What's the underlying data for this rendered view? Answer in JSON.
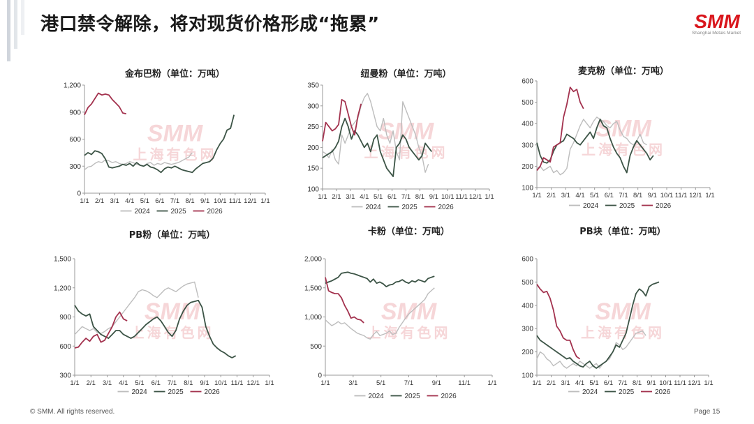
{
  "page": {
    "title": "港口禁令解除，将对现货价格形成“拖累”",
    "logo_text": "SMM",
    "logo_subtitle": "Shanghai Metals Market",
    "watermark_latin": "SMM",
    "watermark_cn": "上海有色网",
    "footer_copyright": "© SMM. All rights reserved.",
    "footer_page": "Page 15"
  },
  "colors": {
    "y2024": "#bdbdbd",
    "y2025": "#3c5446",
    "y2026": "#a3324e",
    "brand": "#d9161c"
  },
  "chart_data": [
    {
      "type": "line",
      "title": "金布巴粉（单位：万吨）",
      "ylim": [
        0,
        1200
      ],
      "yticks": [
        0,
        300,
        600,
        900,
        1200
      ],
      "ytick_labels": [
        "0",
        "300",
        "600",
        "900",
        "1,200"
      ],
      "x_labels": [
        "1/1",
        "2/1",
        "3/1",
        "4/1",
        "5/1",
        "6/1",
        "7/1",
        "8/1",
        "9/1",
        "10/1",
        "11/1",
        "12/1",
        "1/1"
      ],
      "series": [
        {
          "name": "2024",
          "values": [
            260,
            290,
            300,
            330,
            350,
            340,
            370,
            360,
            340,
            350,
            330,
            320,
            330,
            350,
            340,
            320,
            310,
            300,
            330,
            340,
            310,
            330,
            320,
            340,
            330,
            320,
            330,
            340,
            360,
            380,
            400,
            450
          ]
        },
        {
          "name": "2025",
          "values": [
            420,
            450,
            430,
            470,
            460,
            440,
            380,
            290,
            280,
            290,
            300,
            320,
            310,
            330,
            300,
            340,
            310,
            300,
            320,
            290,
            280,
            260,
            230,
            270,
            290,
            280,
            300,
            280,
            260,
            250,
            240,
            230,
            270,
            300,
            330,
            340,
            350,
            390,
            480,
            550,
            600,
            700,
            720,
            870
          ]
        },
        {
          "name": "2026",
          "values": [
            870,
            950,
            990,
            1050,
            1110,
            1090,
            1100,
            1090,
            1040,
            1000,
            960,
            890,
            880
          ]
        }
      ]
    },
    {
      "type": "line",
      "title": "纽曼粉（单位：万吨）",
      "ylim": [
        100,
        350
      ],
      "yticks": [
        100,
        150,
        200,
        250,
        300,
        350
      ],
      "ytick_labels": [
        "100",
        "150",
        "200",
        "250",
        "300",
        "350"
      ],
      "x_labels": [
        "1/1",
        "2/1",
        "3/1",
        "4/1",
        "5/1",
        "6/1",
        "7/1",
        "8/1",
        "9/1",
        "10/1",
        "11/1",
        "12/1",
        "1/1"
      ],
      "series": [
        {
          "name": "2024",
          "values": [
            190,
            185,
            175,
            195,
            170,
            160,
            230,
            210,
            230,
            250,
            260,
            270,
            300,
            320,
            330,
            310,
            280,
            250,
            240,
            270,
            230,
            210,
            240,
            190,
            170,
            310,
            290,
            270,
            250,
            230,
            200,
            180,
            140,
            160
          ]
        },
        {
          "name": "2025",
          "values": [
            175,
            180,
            185,
            190,
            200,
            215,
            250,
            270,
            250,
            220,
            240,
            230,
            215,
            200,
            210,
            190,
            220,
            230,
            190,
            170,
            150,
            140,
            130,
            200,
            210,
            230,
            220,
            200,
            190,
            180,
            170,
            180,
            210,
            200,
            190
          ]
        },
        {
          "name": "2026",
          "values": [
            215,
            260,
            250,
            240,
            245,
            255,
            315,
            310,
            280,
            250,
            230,
            275,
            305
          ]
        }
      ]
    },
    {
      "type": "line",
      "title": "麦克粉（单位：万吨）",
      "ylim": [
        100,
        600
      ],
      "yticks": [
        100,
        200,
        300,
        400,
        500,
        600
      ],
      "ytick_labels": [
        "100",
        "200",
        "300",
        "400",
        "500",
        "600"
      ],
      "x_labels": [
        "1/1",
        "2/1",
        "3/1",
        "4/1",
        "5/1",
        "6/1",
        "7/1",
        "8/1",
        "9/1",
        "10/1",
        "11/1",
        "12/1",
        "1/1"
      ],
      "series": [
        {
          "name": "2024",
          "values": [
            190,
            200,
            180,
            190,
            200,
            170,
            180,
            160,
            170,
            190,
            280,
            310,
            350,
            390,
            420,
            400,
            380,
            410,
            430,
            420,
            410,
            390,
            380,
            400,
            410,
            370,
            340,
            330,
            310,
            300,
            320,
            350,
            310,
            300
          ]
        },
        {
          "name": "2025",
          "values": [
            310,
            250,
            220,
            215,
            230,
            270,
            300,
            310,
            320,
            350,
            340,
            330,
            310,
            300,
            320,
            340,
            360,
            330,
            380,
            420,
            390,
            380,
            330,
            290,
            260,
            240,
            200,
            170,
            250,
            290,
            320,
            300,
            280,
            260,
            230,
            250
          ]
        },
        {
          "name": "2026",
          "values": [
            180,
            200,
            240,
            230,
            220,
            290,
            300,
            310,
            430,
            490,
            570,
            550,
            560,
            500,
            470
          ]
        }
      ]
    },
    {
      "type": "line",
      "title": "PB粉（单位：万吨）",
      "ylim": [
        300,
        1500
      ],
      "yticks": [
        300,
        600,
        900,
        1200,
        1500
      ],
      "ytick_labels": [
        "300",
        "600",
        "900",
        "1,200",
        "1,500"
      ],
      "x_labels": [
        "1/1",
        "2/1",
        "3/1",
        "4/1",
        "5/1",
        "6/1",
        "7/1",
        "8/1",
        "9/1",
        "10/1",
        "11/1",
        "12/1",
        "1/1"
      ],
      "series": [
        {
          "name": "2024",
          "values": [
            720,
            760,
            800,
            780,
            760,
            780,
            740,
            730,
            750,
            780,
            800,
            850,
            900,
            950,
            1000,
            1050,
            1100,
            1160,
            1180,
            1170,
            1150,
            1120,
            1100,
            1140,
            1180,
            1200,
            1180,
            1160,
            1190,
            1220,
            1240,
            1250,
            1260,
            1100
          ]
        },
        {
          "name": "2025",
          "values": [
            1020,
            960,
            930,
            910,
            930,
            800,
            760,
            720,
            700,
            680,
            720,
            760,
            760,
            720,
            700,
            680,
            700,
            740,
            780,
            820,
            850,
            880,
            900,
            860,
            800,
            740,
            700,
            760,
            880,
            960,
            1020,
            1050,
            1060,
            1070,
            1000,
            800,
            700,
            620,
            580,
            550,
            530,
            500,
            480,
            500
          ]
        },
        {
          "name": "2026",
          "values": [
            580,
            590,
            640,
            680,
            650,
            700,
            720,
            640,
            660,
            730,
            800,
            900,
            950,
            880,
            860
          ]
        }
      ]
    },
    {
      "type": "line",
      "title": "卡粉（单位：万吨）",
      "ylim": [
        0,
        2000
      ],
      "yticks": [
        0,
        500,
        1000,
        1500,
        2000
      ],
      "ytick_labels": [
        "0",
        "500",
        "1,000",
        "1,500",
        "2,000"
      ],
      "x_labels": [
        "1/1",
        "3/1",
        "5/1",
        "7/1",
        "9/1",
        "11/1",
        "1/1"
      ],
      "series": [
        {
          "name": "2024",
          "values": [
            950,
            900,
            850,
            880,
            920,
            880,
            900,
            850,
            800,
            760,
            720,
            700,
            680,
            640,
            620,
            700,
            750,
            680,
            700,
            720,
            760,
            700,
            720,
            820,
            900,
            980,
            1050,
            1100,
            1150,
            1200,
            1250,
            1300,
            1400,
            1450,
            1500
          ]
        },
        {
          "name": "2025",
          "values": [
            1580,
            1600,
            1620,
            1650,
            1680,
            1750,
            1760,
            1770,
            1750,
            1740,
            1720,
            1700,
            1680,
            1660,
            1600,
            1650,
            1580,
            1600,
            1570,
            1520,
            1550,
            1560,
            1600,
            1610,
            1640,
            1600,
            1580,
            1620,
            1600,
            1640,
            1620,
            1600,
            1660,
            1680,
            1700
          ]
        },
        {
          "name": "2026",
          "values": [
            1680,
            1450,
            1420,
            1400,
            1400,
            1330,
            1200,
            1100,
            980,
            1000,
            960,
            950,
            900
          ]
        }
      ]
    },
    {
      "type": "line",
      "title": "PB块（单位：万吨）",
      "ylim": [
        100,
        600
      ],
      "yticks": [
        100,
        200,
        300,
        400,
        500,
        600
      ],
      "ytick_labels": [
        "100",
        "200",
        "300",
        "400",
        "500",
        "600"
      ],
      "x_labels": [
        "1/1",
        "2/1",
        "3/1",
        "4/1",
        "5/1",
        "6/1",
        "7/1",
        "8/1",
        "9/1",
        "10/1",
        "11/1",
        "12/1",
        "1/1"
      ],
      "series": [
        {
          "name": "2024",
          "values": [
            170,
            200,
            190,
            170,
            160,
            140,
            150,
            160,
            140,
            130,
            140,
            150,
            140,
            160,
            150,
            140,
            130,
            140,
            150,
            130,
            150,
            160,
            170,
            200,
            240,
            230,
            210,
            220,
            240,
            260,
            280,
            285,
            290,
            270
          ]
        },
        {
          "name": "2025",
          "values": [
            270,
            250,
            240,
            230,
            220,
            210,
            200,
            190,
            180,
            170,
            175,
            160,
            150,
            140,
            135,
            150,
            160,
            140,
            130,
            140,
            150,
            160,
            180,
            200,
            230,
            220,
            250,
            280,
            340,
            400,
            450,
            470,
            460,
            440,
            480,
            490,
            495,
            500
          ]
        },
        {
          "name": "2026",
          "values": [
            490,
            470,
            455,
            460,
            430,
            380,
            310,
            290,
            260,
            250,
            250,
            210,
            180,
            170
          ]
        }
      ]
    }
  ]
}
